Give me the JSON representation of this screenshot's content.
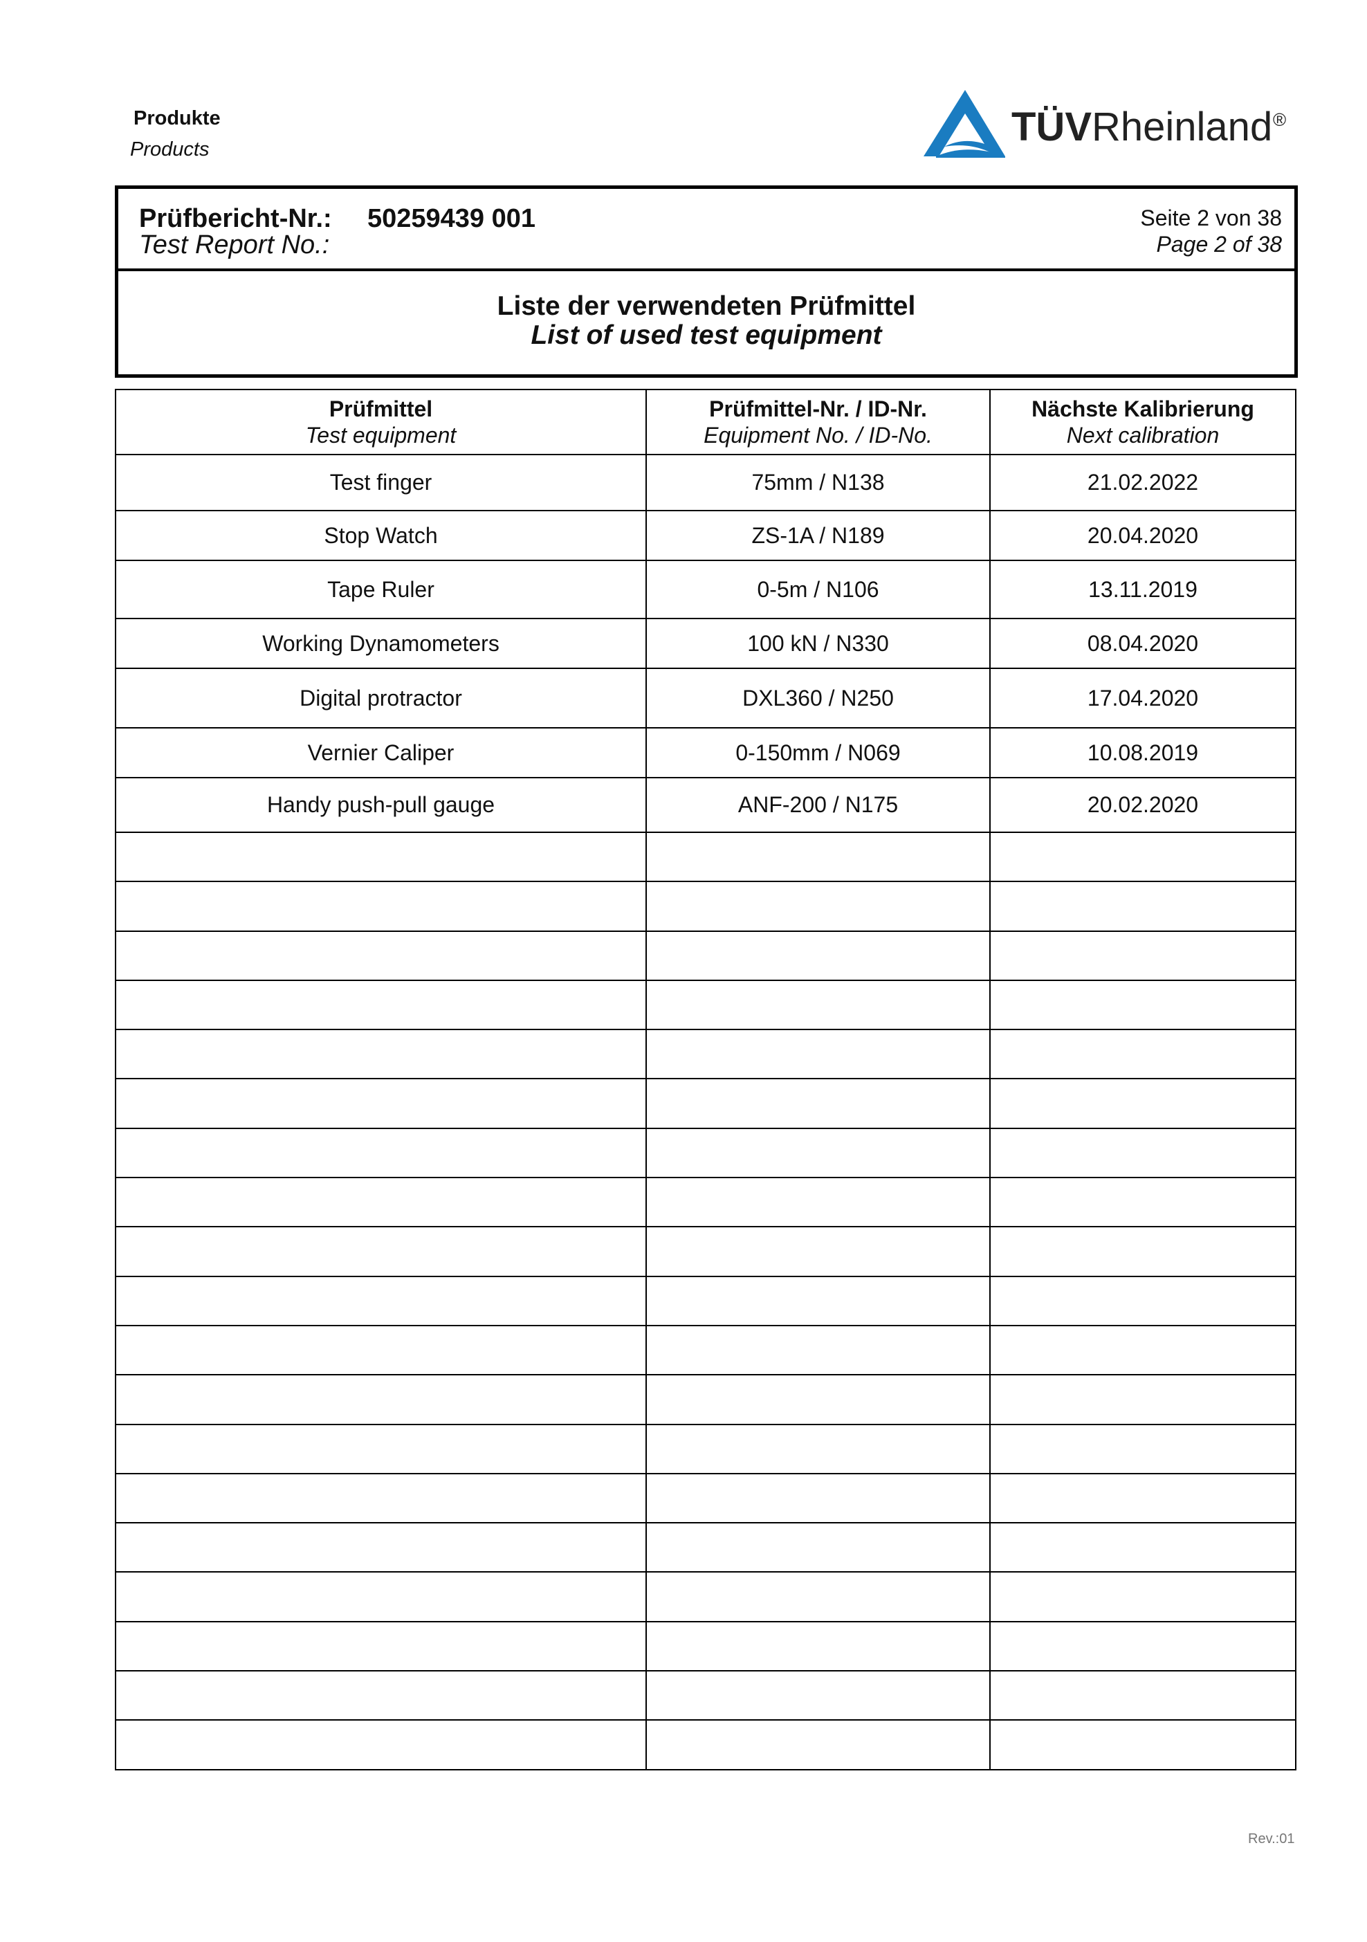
{
  "header": {
    "department_de": "Produkte",
    "department_en": "Products",
    "logo": {
      "text_bold": "TÜV",
      "text_regular": "Rheinland",
      "registered": "®",
      "color": "#1a7cc1"
    }
  },
  "report": {
    "label_de": "Prüfbericht-Nr.:",
    "label_en": "Test Report No.:",
    "number": "50259439 001",
    "page_de": "Seite 2 von 38",
    "page_en": "Page 2 of 38"
  },
  "title": {
    "de": "Liste der verwendeten Prüfmittel",
    "en": "List of used test equipment"
  },
  "table": {
    "columns": [
      {
        "de": "Prüfmittel",
        "en": "Test equipment"
      },
      {
        "de": "Prüfmittel-Nr. / ID-Nr.",
        "en": "Equipment No. / ID-No."
      },
      {
        "de": "Nächste Kalibrierung",
        "en": "Next calibration"
      }
    ],
    "rows": [
      [
        "Test finger",
        "75mm / N138",
        "21.02.2022"
      ],
      [
        "Stop Watch",
        "ZS-1A / N189",
        "20.04.2020"
      ],
      [
        "Tape Ruler",
        "0-5m / N106",
        "13.11.2019"
      ],
      [
        "Working Dynamometers",
        "100 kN / N330",
        "08.04.2020"
      ],
      [
        "Digital protractor",
        "DXL360 / N250",
        "17.04.2020"
      ],
      [
        "Vernier Caliper",
        "0-150mm / N069",
        "10.08.2019"
      ],
      [
        "Handy push-pull gauge",
        "ANF-200 / N175",
        "20.02.2020"
      ]
    ],
    "empty_rows": 19
  },
  "footer": {
    "revision": "Rev.:01"
  }
}
